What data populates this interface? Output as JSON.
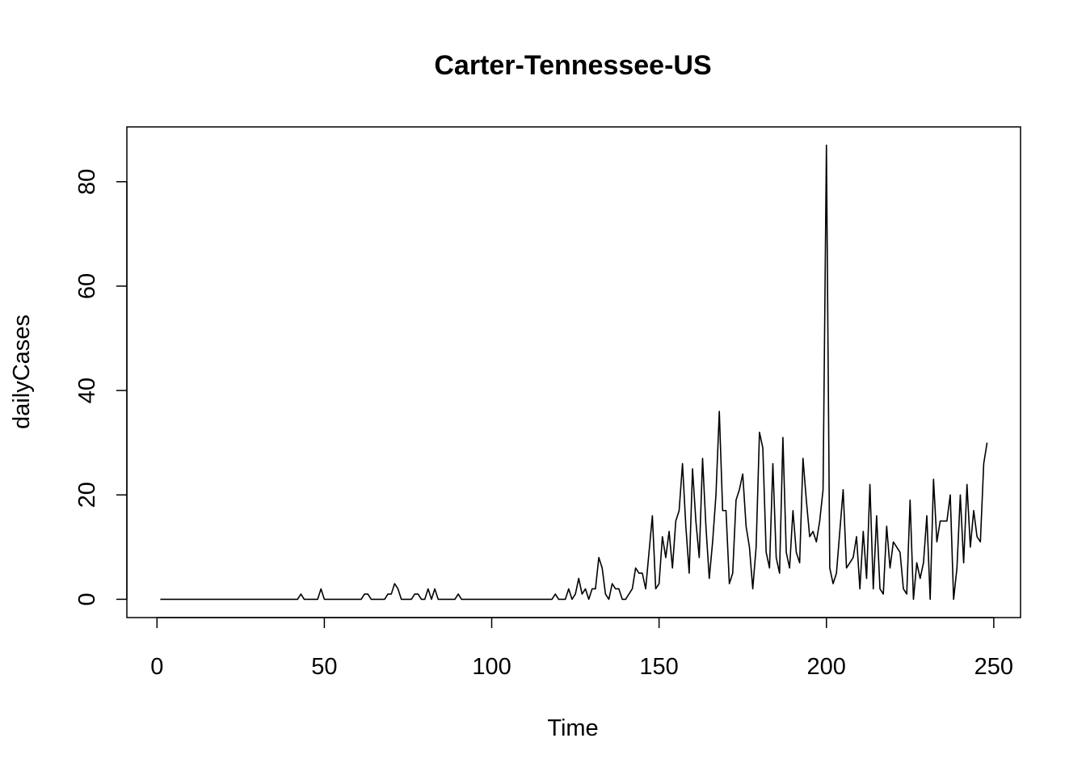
{
  "chart_data": {
    "type": "line",
    "title": "Carter-Tennessee-US",
    "xlabel": "Time",
    "ylabel": "dailyCases",
    "xlim": [
      -9,
      258
    ],
    "ylim": [
      -3.5,
      90.5
    ],
    "x_ticks": [
      0,
      50,
      100,
      150,
      200,
      250
    ],
    "x_tick_labels": [
      "0",
      "50",
      "100",
      "150",
      "200",
      "250"
    ],
    "y_ticks": [
      0,
      20,
      40,
      60,
      80
    ],
    "y_tick_labels": [
      "0",
      "20",
      "40",
      "60",
      "80"
    ],
    "grid": false,
    "legend": "none",
    "line_color": "#000000",
    "x_start": 1,
    "series": [
      {
        "values": [
          0,
          0,
          0,
          0,
          0,
          0,
          0,
          0,
          0,
          0,
          0,
          0,
          0,
          0,
          0,
          0,
          0,
          0,
          0,
          0,
          0,
          0,
          0,
          0,
          0,
          0,
          0,
          0,
          0,
          0,
          0,
          0,
          0,
          0,
          0,
          0,
          0,
          0,
          0,
          0,
          0,
          0,
          1,
          0,
          0,
          0,
          0,
          0,
          2,
          0,
          0,
          0,
          0,
          0,
          0,
          0,
          0,
          0,
          0,
          0,
          0,
          1,
          1,
          0,
          0,
          0,
          0,
          0,
          1,
          1,
          3,
          2,
          0,
          0,
          0,
          0,
          1,
          1,
          0,
          0,
          2,
          0,
          2,
          0,
          0,
          0,
          0,
          0,
          0,
          1,
          0,
          0,
          0,
          0,
          0,
          0,
          0,
          0,
          0,
          0,
          0,
          0,
          0,
          0,
          0,
          0,
          0,
          0,
          0,
          0,
          0,
          0,
          0,
          0,
          0,
          0,
          0,
          0,
          1,
          0,
          0,
          0,
          2,
          0,
          1,
          4,
          1,
          2,
          0,
          2,
          2,
          8,
          6,
          1,
          0,
          3,
          2,
          2,
          0,
          0,
          1,
          2,
          6,
          5,
          5,
          2,
          9,
          16,
          2,
          3,
          12,
          8,
          13,
          6,
          15,
          17,
          26,
          14,
          5,
          25,
          15,
          8,
          27,
          14,
          4,
          11,
          20,
          36,
          17,
          17,
          3,
          5,
          19,
          21,
          24,
          14,
          10,
          2,
          10,
          32,
          29,
          9,
          6,
          26,
          8,
          5,
          31,
          9,
          6,
          17,
          9,
          7,
          27,
          19,
          12,
          13,
          11,
          15,
          21,
          87,
          6,
          3,
          5,
          13,
          21,
          6,
          7,
          8,
          12,
          2,
          13,
          4,
          22,
          2,
          16,
          2,
          1,
          14,
          6,
          11,
          10,
          9,
          2,
          1,
          19,
          0,
          7,
          4,
          7,
          16,
          0,
          23,
          11,
          15,
          15,
          15,
          20,
          0,
          6,
          20,
          7,
          22,
          10,
          17,
          12,
          11,
          26,
          30
        ]
      }
    ]
  }
}
